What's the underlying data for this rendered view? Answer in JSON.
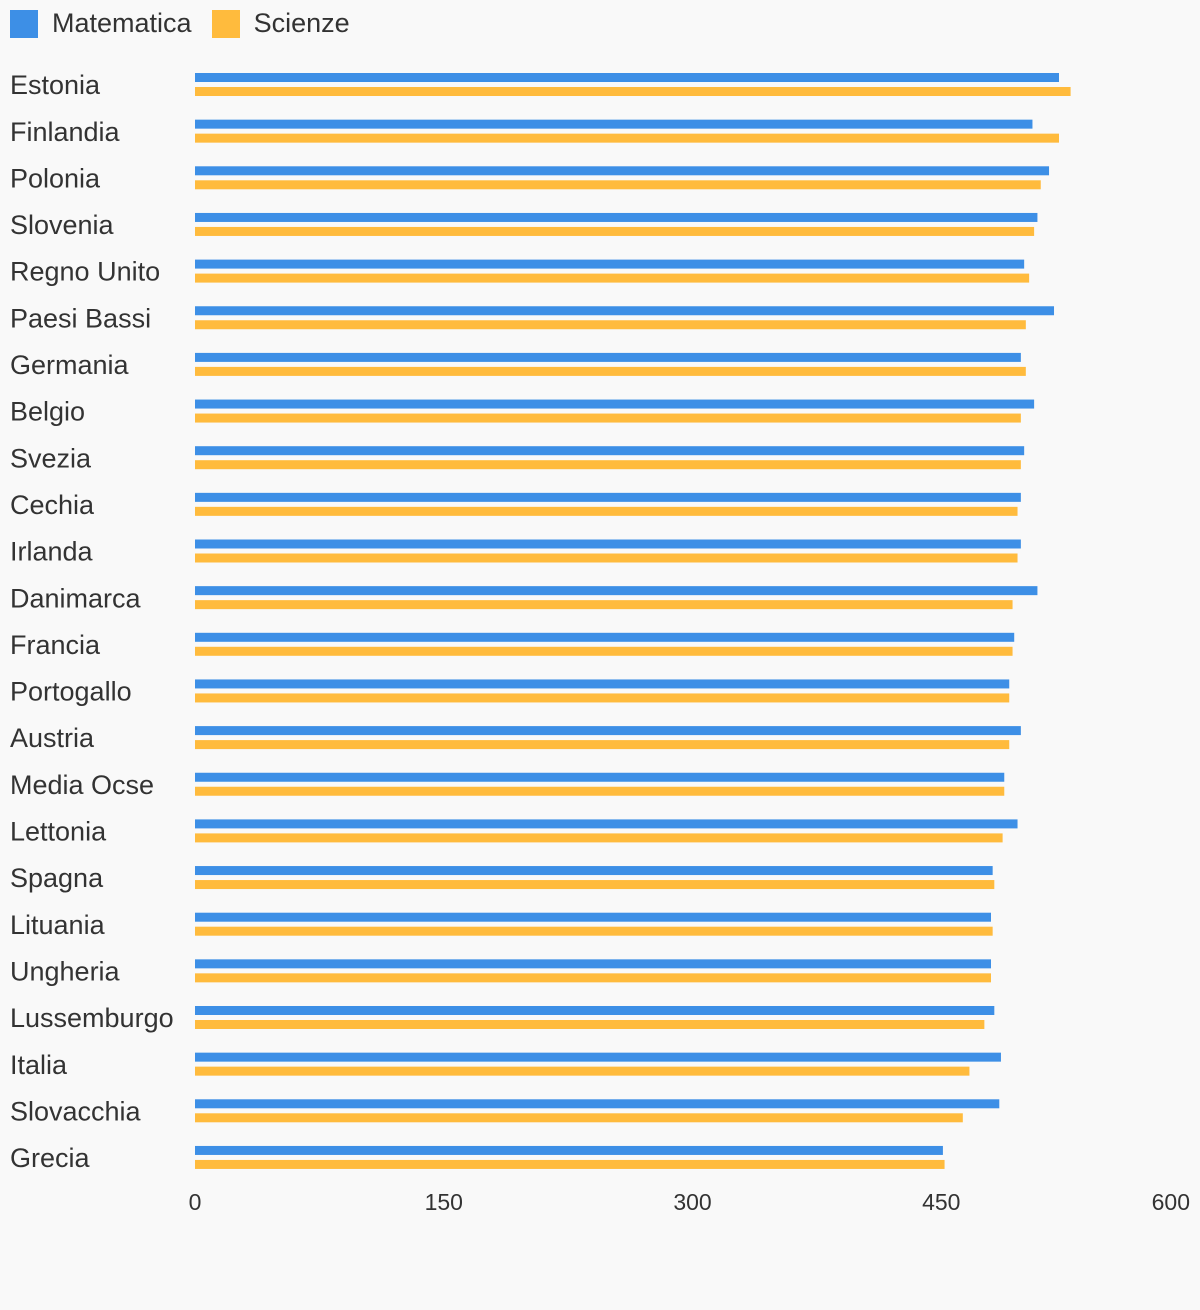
{
  "chart_data": {
    "type": "bar",
    "orientation": "horizontal",
    "categories": [
      "Estonia",
      "Finlandia",
      "Polonia",
      "Slovenia",
      "Regno Unito",
      "Paesi Bassi",
      "Germania",
      "Belgio",
      "Svezia",
      "Cechia",
      "Irlanda",
      "Danimarca",
      "Francia",
      "Portogallo",
      "Austria",
      "Media Ocse",
      "Lettonia",
      "Spagna",
      "Lituania",
      "Ungheria",
      "Lussemburgo",
      "Italia",
      "Slovacchia",
      "Grecia"
    ],
    "series": [
      {
        "name": "Matematica",
        "color": "#3d8fe6",
        "values": [
          521,
          505,
          515,
          508,
          500,
          518,
          498,
          506,
          500,
          498,
          498,
          508,
          494,
          491,
          498,
          488,
          496,
          481,
          480,
          480,
          482,
          486,
          485,
          451
        ]
      },
      {
        "name": "Scienze",
        "color": "#ffbb3d",
        "values": [
          528,
          521,
          510,
          506,
          503,
          501,
          501,
          498,
          498,
          496,
          496,
          493,
          493,
          491,
          491,
          488,
          487,
          482,
          481,
          480,
          476,
          467,
          463,
          452
        ]
      }
    ],
    "xlim": [
      0,
      600
    ],
    "xticks": [
      "0",
      "150",
      "300",
      "450",
      "600"
    ],
    "grid": false,
    "legend_position": "top-left"
  }
}
